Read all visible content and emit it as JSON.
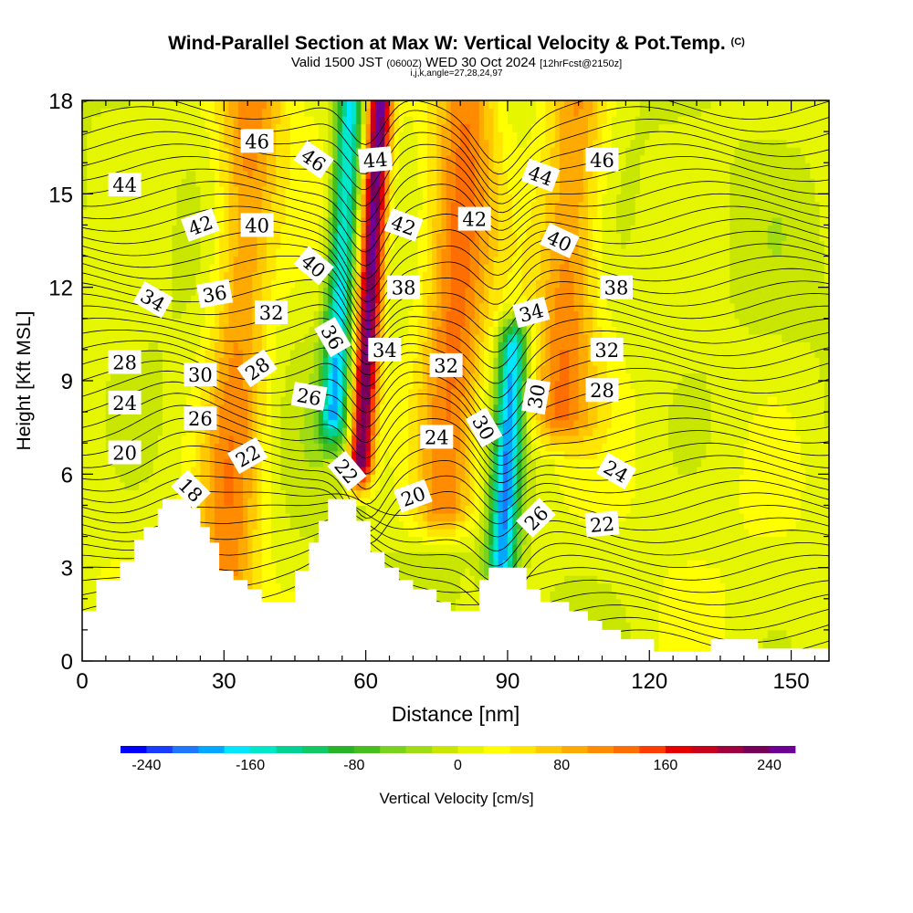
{
  "chart_data": {
    "type": "heatmap",
    "title": "Wind-Parallel Section at Max W: Vertical Velocity & Pot.Temp.",
    "title_mark": "(C)",
    "subtitle_main": "Valid 1500 JST",
    "subtitle_utc": "(0600Z)",
    "subtitle_date": "WED 30 Oct 2024",
    "subtitle_fcst": "[12hrFcst@2150z]",
    "meta": "i,j,k,angle=27,28,24,97",
    "xlabel": "Distance [nm]",
    "ylabel": "Height [Kft MSL]",
    "xlim": [
      0,
      158
    ],
    "ylim": [
      0,
      18
    ],
    "x_ticks": [
      0,
      30,
      60,
      90,
      120,
      150
    ],
    "y_ticks": [
      0,
      3,
      6,
      9,
      12,
      15,
      18
    ],
    "colorbar": {
      "label": "Vertical Velocity [cm/s]",
      "ticks": [
        -240,
        -160,
        -80,
        0,
        80,
        160,
        240
      ],
      "colors": [
        "#0000ff",
        "#1a3cff",
        "#1e78ff",
        "#00a8ff",
        "#00e6ff",
        "#00e6c8",
        "#00d296",
        "#10c864",
        "#28b428",
        "#46be1e",
        "#78d21e",
        "#a0dc14",
        "#c8e600",
        "#e6f500",
        "#ffff00",
        "#ffe600",
        "#ffc800",
        "#ffaa00",
        "#ff8c00",
        "#ff6e00",
        "#ff3c00",
        "#e60000",
        "#c8001e",
        "#a0003c",
        "#78005a",
        "#6e0096"
      ]
    },
    "vertical_velocity_features": [
      {
        "kind": "updraft",
        "x_center": 61,
        "y_from": 6.5,
        "y_to": 18,
        "peak": 240
      },
      {
        "kind": "downdraft",
        "x_center": 55,
        "y_from": 8,
        "y_to": 18,
        "peak": -180
      },
      {
        "kind": "downdraft",
        "x_center": 90,
        "y_from": 3.3,
        "y_to": 10,
        "peak": -200
      },
      {
        "kind": "updraft",
        "x_center": 33,
        "y_from": 2,
        "y_to": 18,
        "peak": 100
      },
      {
        "kind": "updraft",
        "x_center": 79,
        "y_from": 5,
        "y_to": 18,
        "peak": 110
      },
      {
        "kind": "updraft",
        "x_center": 103,
        "y_from": 8,
        "y_to": 18,
        "peak": 100
      }
    ],
    "theta_contour_labels": [
      {
        "value": "46",
        "x": 37,
        "y": 16.7,
        "angle": 0
      },
      {
        "value": "46",
        "x": 49,
        "y": 16.1,
        "angle": 35
      },
      {
        "value": "44",
        "x": 62,
        "y": 16.1,
        "angle": -5
      },
      {
        "value": "44",
        "x": 97,
        "y": 15.6,
        "angle": 20
      },
      {
        "value": "46",
        "x": 110,
        "y": 16.1,
        "angle": 0
      },
      {
        "value": "44",
        "x": 9,
        "y": 15.3,
        "angle": 0
      },
      {
        "value": "42",
        "x": 25,
        "y": 14.0,
        "angle": -20
      },
      {
        "value": "40",
        "x": 37,
        "y": 14.0,
        "angle": 0
      },
      {
        "value": "42",
        "x": 68,
        "y": 14.0,
        "angle": 20
      },
      {
        "value": "42",
        "x": 83,
        "y": 14.2,
        "angle": 0
      },
      {
        "value": "40",
        "x": 101,
        "y": 13.5,
        "angle": 25
      },
      {
        "value": "40",
        "x": 49,
        "y": 12.7,
        "angle": 40
      },
      {
        "value": "34",
        "x": 15,
        "y": 11.6,
        "angle": 30
      },
      {
        "value": "36",
        "x": 28,
        "y": 11.8,
        "angle": -10
      },
      {
        "value": "38",
        "x": 68,
        "y": 12.0,
        "angle": 0
      },
      {
        "value": "38",
        "x": 113,
        "y": 12.0,
        "angle": 0
      },
      {
        "value": "32",
        "x": 40,
        "y": 11.2,
        "angle": 0
      },
      {
        "value": "34",
        "x": 95,
        "y": 11.2,
        "angle": -15
      },
      {
        "value": "36",
        "x": 53,
        "y": 10.4,
        "angle": 60
      },
      {
        "value": "34",
        "x": 64,
        "y": 10.0,
        "angle": 0
      },
      {
        "value": "32",
        "x": 111,
        "y": 10.0,
        "angle": 0
      },
      {
        "value": "28",
        "x": 9,
        "y": 9.6,
        "angle": 0
      },
      {
        "value": "32",
        "x": 77,
        "y": 9.5,
        "angle": 0
      },
      {
        "value": "30",
        "x": 25,
        "y": 9.2,
        "angle": 0
      },
      {
        "value": "28",
        "x": 37,
        "y": 9.4,
        "angle": -35
      },
      {
        "value": "26",
        "x": 48,
        "y": 8.5,
        "angle": 10
      },
      {
        "value": "30",
        "x": 96,
        "y": 8.5,
        "angle": -80
      },
      {
        "value": "28",
        "x": 110,
        "y": 8.7,
        "angle": 0
      },
      {
        "value": "24",
        "x": 9,
        "y": 8.3,
        "angle": 0
      },
      {
        "value": "26",
        "x": 25,
        "y": 7.8,
        "angle": 0
      },
      {
        "value": "30",
        "x": 85,
        "y": 7.5,
        "angle": 60
      },
      {
        "value": "24",
        "x": 75,
        "y": 7.2,
        "angle": 0
      },
      {
        "value": "20",
        "x": 9,
        "y": 6.7,
        "angle": 0
      },
      {
        "value": "22",
        "x": 35,
        "y": 6.6,
        "angle": -30
      },
      {
        "value": "22",
        "x": 56,
        "y": 6.1,
        "angle": 50
      },
      {
        "value": "24",
        "x": 113,
        "y": 6.1,
        "angle": 30
      },
      {
        "value": "18",
        "x": 23,
        "y": 5.5,
        "angle": 45
      },
      {
        "value": "20",
        "x": 70,
        "y": 5.3,
        "angle": -20
      },
      {
        "value": "26",
        "x": 96,
        "y": 4.6,
        "angle": -45
      },
      {
        "value": "22",
        "x": 110,
        "y": 4.4,
        "angle": -5
      }
    ]
  }
}
